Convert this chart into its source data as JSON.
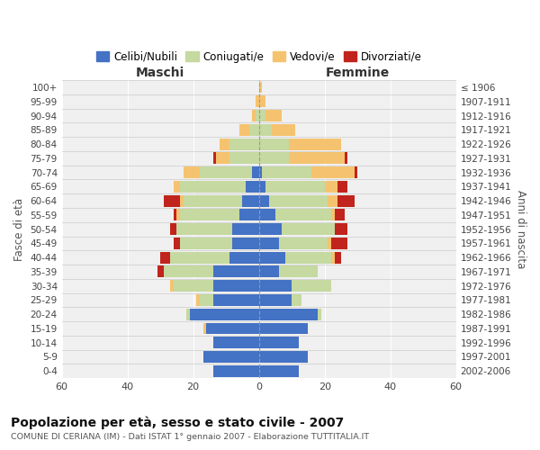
{
  "age_groups": [
    "0-4",
    "5-9",
    "10-14",
    "15-19",
    "20-24",
    "25-29",
    "30-34",
    "35-39",
    "40-44",
    "45-49",
    "50-54",
    "55-59",
    "60-64",
    "65-69",
    "70-74",
    "75-79",
    "80-84",
    "85-89",
    "90-94",
    "95-99",
    "100+"
  ],
  "birth_years": [
    "2002-2006",
    "1997-2001",
    "1992-1996",
    "1987-1991",
    "1982-1986",
    "1977-1981",
    "1972-1976",
    "1967-1971",
    "1962-1966",
    "1957-1961",
    "1952-1956",
    "1947-1951",
    "1942-1946",
    "1937-1941",
    "1932-1936",
    "1927-1931",
    "1922-1926",
    "1917-1921",
    "1912-1916",
    "1907-1911",
    "≤ 1906"
  ],
  "male_celibi": [
    14,
    17,
    14,
    16,
    21,
    14,
    14,
    14,
    9,
    8,
    8,
    6,
    5,
    4,
    2,
    0,
    0,
    0,
    0,
    0,
    0
  ],
  "male_coniugati": [
    0,
    0,
    0,
    0,
    1,
    4,
    12,
    15,
    18,
    16,
    17,
    18,
    18,
    20,
    16,
    9,
    9,
    3,
    1,
    0,
    0
  ],
  "male_vedovi": [
    0,
    0,
    0,
    1,
    0,
    1,
    1,
    0,
    0,
    0,
    0,
    1,
    1,
    2,
    5,
    4,
    3,
    3,
    1,
    1,
    0
  ],
  "male_divorziati": [
    0,
    0,
    0,
    0,
    0,
    0,
    0,
    2,
    3,
    2,
    2,
    1,
    5,
    0,
    0,
    1,
    0,
    0,
    0,
    0,
    0
  ],
  "female_celibi": [
    12,
    15,
    12,
    15,
    18,
    10,
    10,
    6,
    8,
    6,
    7,
    5,
    3,
    2,
    1,
    0,
    0,
    0,
    0,
    0,
    0
  ],
  "female_coniugati": [
    0,
    0,
    0,
    0,
    1,
    3,
    12,
    12,
    14,
    15,
    16,
    17,
    18,
    18,
    15,
    9,
    9,
    4,
    2,
    0,
    0
  ],
  "female_vedovi": [
    0,
    0,
    0,
    0,
    0,
    0,
    0,
    0,
    1,
    1,
    0,
    1,
    3,
    4,
    13,
    17,
    16,
    7,
    5,
    2,
    1
  ],
  "female_divorziati": [
    0,
    0,
    0,
    0,
    0,
    0,
    0,
    0,
    2,
    5,
    4,
    3,
    5,
    3,
    1,
    1,
    0,
    0,
    0,
    0,
    0
  ],
  "color_celibi": "#4472c4",
  "color_coniugati": "#c5d9a0",
  "color_vedovi": "#f5c36f",
  "color_divorziati": "#c0241c",
  "title": "Popolazione per età, sesso e stato civile - 2007",
  "subtitle": "COMUNE DI CERIANA (IM) - Dati ISTAT 1° gennaio 2007 - Elaborazione TUTTITALIA.IT",
  "xlabel_left": "Maschi",
  "xlabel_right": "Femmine",
  "ylabel_left": "Fasce di età",
  "ylabel_right": "Anni di nascita",
  "xlim": 60,
  "bg_color": "#ffffff",
  "plot_bg_color": "#f0f0f0",
  "grid_color": "#ffffff"
}
